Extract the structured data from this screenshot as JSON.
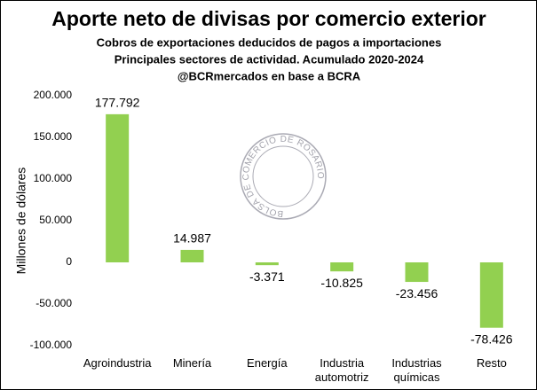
{
  "chart_data": {
    "type": "bar",
    "title": "Aporte neto de divisas por comercio exterior",
    "subtitle": [
      "Cobros de exportaciones deducidos de pagos a importaciones",
      "Principales sectores de actividad. Acumulado 2020-2024",
      "@BCRmercados en base a BCRA"
    ],
    "y_label": "Millones de dólares",
    "watermark": "BOLSA DE COMERCIO DE ROSARIO",
    "categories": [
      "Agroindustria",
      "Minería",
      "Energía",
      "Industria automotriz",
      "Industrias químicas",
      "Resto"
    ],
    "values": [
      177792,
      14987,
      -3371,
      -10825,
      -23456,
      -78426
    ],
    "value_labels": [
      "177.792",
      "14.987",
      "-3.371",
      "-10.825",
      "-23.456",
      "-78.426"
    ],
    "color": "#92d050",
    "ylim": [
      -100000,
      200000
    ],
    "yticks": [
      {
        "value": -100000,
        "label": "-100.000"
      },
      {
        "value": -50000,
        "label": "-50.000"
      },
      0,
      {
        "value": 50000,
        "label": "50.000"
      },
      {
        "value": 100000,
        "label": "100.000"
      },
      {
        "value": 150000,
        "label": "150.000"
      },
      {
        "value": 200000,
        "label": "200.000"
      }
    ],
    "grid": false
  }
}
